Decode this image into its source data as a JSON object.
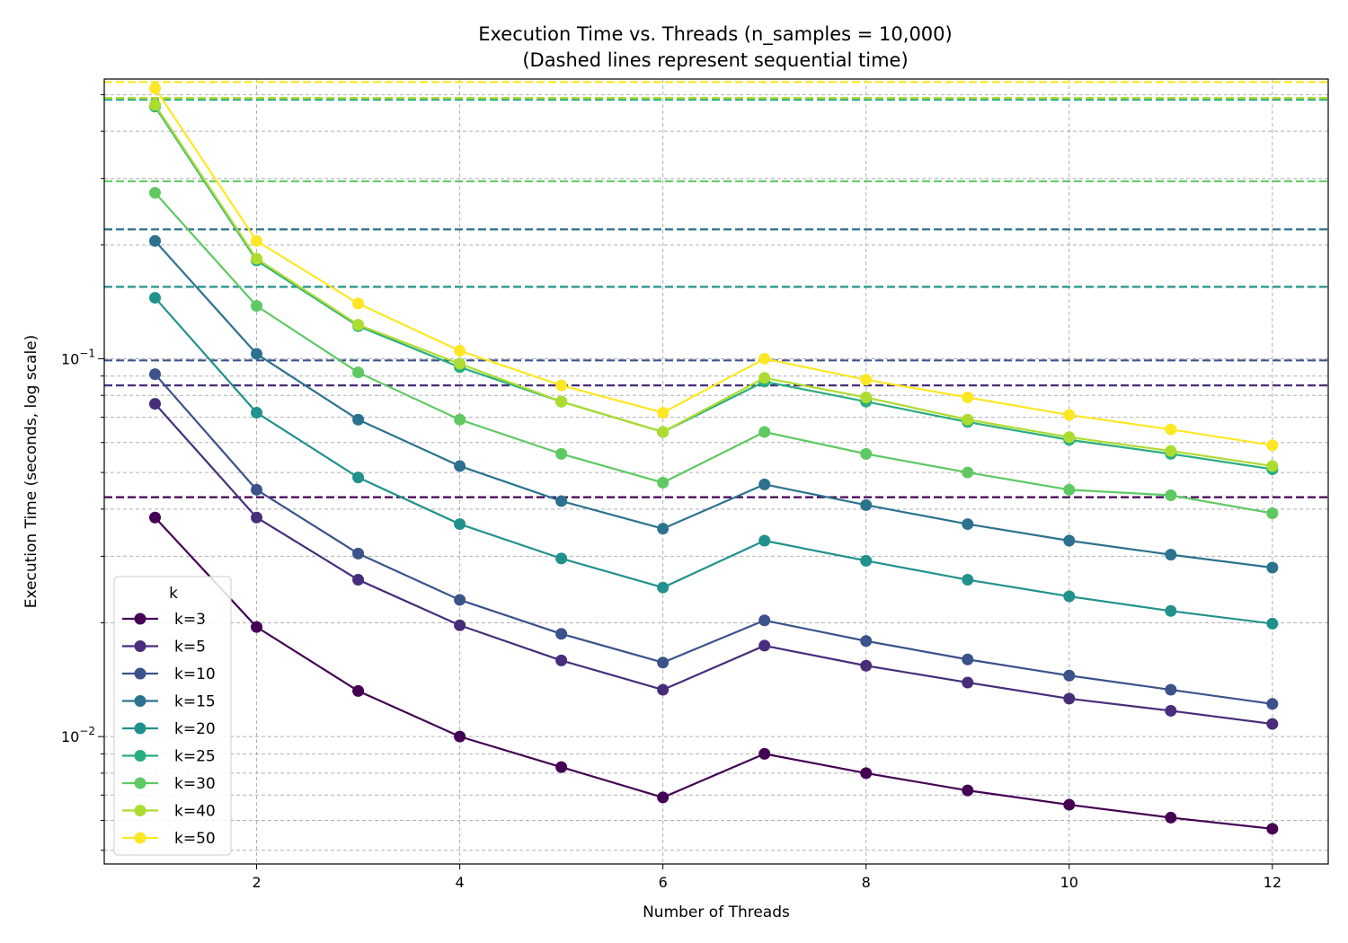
{
  "chart_data": {
    "type": "line",
    "title": "Execution Time vs. Threads (n_samples = 10,000)",
    "subtitle": "(Dashed lines represent sequential time)",
    "xlabel": "Number of Threads",
    "ylabel": "Execution Time (seconds, log scale)",
    "x_scale": "linear",
    "y_scale": "log",
    "xlim": [
      0.5,
      12.55
    ],
    "ylim": [
      0.0046,
      0.55
    ],
    "x_ticks": [
      2,
      4,
      6,
      8,
      10,
      12
    ],
    "x_tick_labels": [
      "2",
      "4",
      "6",
      "8",
      "10",
      "12"
    ],
    "y_major_ticks": [
      0.01,
      0.1
    ],
    "y_tick_labels": [
      {
        "base": "10",
        "exp": "−2"
      },
      {
        "base": "10",
        "exp": "−1"
      }
    ],
    "y_minor_ticks": [
      0.005,
      0.006,
      0.007,
      0.008,
      0.009,
      0.02,
      0.03,
      0.04,
      0.05,
      0.06,
      0.07,
      0.08,
      0.09,
      0.2,
      0.3,
      0.4,
      0.5
    ],
    "grid": true,
    "legend": {
      "title": "k",
      "position": "lower-left"
    },
    "x": [
      1,
      2,
      3,
      4,
      5,
      6,
      7,
      8,
      9,
      10,
      11,
      12
    ],
    "series": [
      {
        "name": "k=3",
        "color": "#440154",
        "sequential": 0.043,
        "values": [
          0.038,
          0.0195,
          0.0132,
          0.01,
          0.0083,
          0.0069,
          0.009,
          0.008,
          0.0072,
          0.0066,
          0.0061,
          0.0057
        ]
      },
      {
        "name": "k=5",
        "color": "#472d7b",
        "sequential": 0.085,
        "values": [
          0.076,
          0.038,
          0.026,
          0.0197,
          0.0159,
          0.0133,
          0.0174,
          0.0154,
          0.0139,
          0.0126,
          0.0117,
          0.0108
        ]
      },
      {
        "name": "k=10",
        "color": "#3b528b",
        "sequential": 0.099,
        "values": [
          0.091,
          0.045,
          0.0305,
          0.023,
          0.0187,
          0.0157,
          0.0203,
          0.0179,
          0.016,
          0.0145,
          0.0133,
          0.0122
        ]
      },
      {
        "name": "k=15",
        "color": "#2c728e",
        "sequential": 0.22,
        "values": [
          0.205,
          0.103,
          0.069,
          0.052,
          0.042,
          0.0355,
          0.0465,
          0.041,
          0.0365,
          0.033,
          0.0303,
          0.028
        ]
      },
      {
        "name": "k=20",
        "color": "#21918c",
        "sequential": 0.155,
        "values": [
          0.145,
          0.072,
          0.0485,
          0.0365,
          0.0296,
          0.0248,
          0.033,
          0.0292,
          0.026,
          0.0235,
          0.0215,
          0.0199
        ]
      },
      {
        "name": "k=25",
        "color": "#28ae80",
        "sequential": 0.485,
        "values": [
          0.465,
          0.182,
          0.122,
          0.095,
          0.077,
          0.064,
          0.087,
          0.077,
          0.068,
          0.061,
          0.056,
          0.051
        ]
      },
      {
        "name": "k=30",
        "color": "#5ec962",
        "sequential": 0.295,
        "values": [
          0.275,
          0.138,
          0.092,
          0.069,
          0.056,
          0.047,
          0.064,
          0.056,
          0.05,
          0.045,
          0.0435,
          0.039
        ]
      },
      {
        "name": "k=40",
        "color": "#addc30",
        "sequential": 0.49,
        "values": [
          0.47,
          0.184,
          0.123,
          0.097,
          0.077,
          0.064,
          0.089,
          0.079,
          0.069,
          0.062,
          0.057,
          0.052
        ]
      },
      {
        "name": "k=50",
        "color": "#fde725",
        "sequential": 0.54,
        "values": [
          0.52,
          0.205,
          0.14,
          0.105,
          0.085,
          0.072,
          0.1,
          0.088,
          0.079,
          0.071,
          0.065,
          0.059
        ]
      }
    ]
  }
}
